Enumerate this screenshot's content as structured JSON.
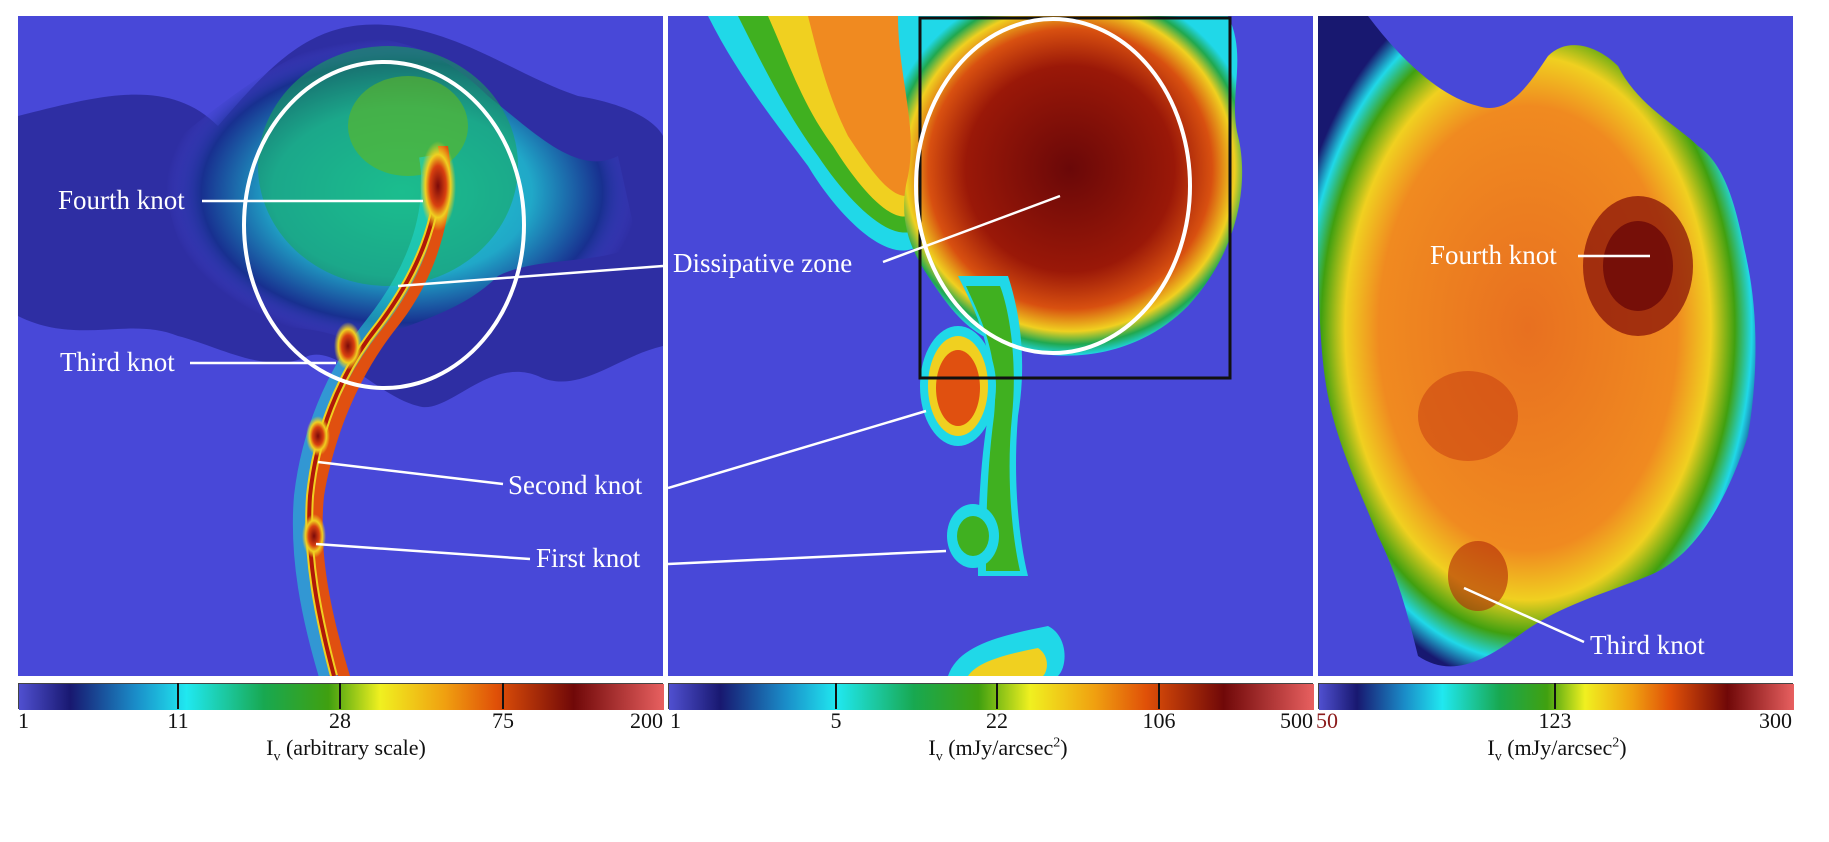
{
  "panels": [
    {
      "annotations": {
        "fourth_knot": "Fourth knot",
        "third_knot": "Third knot",
        "second_knot": "Second knot",
        "first_knot": "First knot",
        "dissipative_zone": "Dissipative zone"
      },
      "colorbar": {
        "ticks": [
          "1",
          "11",
          "28",
          "75",
          "200"
        ],
        "label_main": "I",
        "label_sub": "v",
        "label_rest": " (arbitrary scale)"
      }
    },
    {
      "colorbar": {
        "ticks": [
          "1",
          "5",
          "22",
          "106",
          "500"
        ],
        "label_main": "I",
        "label_sub": "v",
        "label_rest": " (mJy/arcsec",
        "label_sup": "2",
        "label_end": ")"
      }
    },
    {
      "annotations": {
        "fourth_knot": "Fourth knot",
        "third_knot": "Third knot"
      },
      "colorbar": {
        "ticks": [
          "50",
          "123",
          "300"
        ],
        "label_main": "I",
        "label_sub": "v",
        "label_rest": " (mJy/arcsec",
        "label_sup": "2",
        "label_end": ")"
      }
    }
  ],
  "colors": {
    "background": "#4848d8",
    "first_tick_panel3": "#8b1a1a"
  }
}
